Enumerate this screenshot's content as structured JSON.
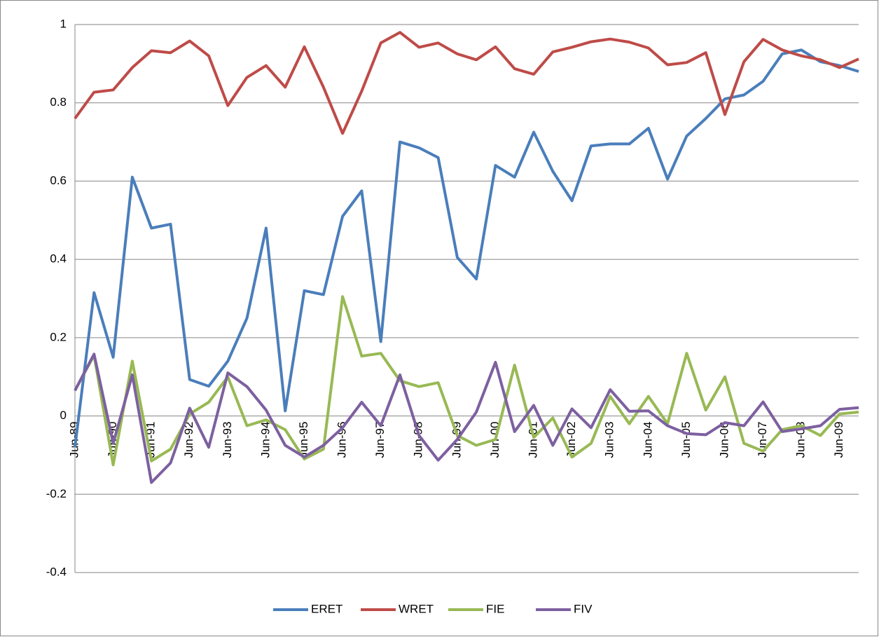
{
  "chart_data": {
    "type": "line",
    "categories": [
      "Jun-89",
      null,
      "Jun-90",
      null,
      "Jun-91",
      null,
      "Jun-92",
      null,
      "Jun-93",
      null,
      "Jun-94",
      null,
      "Jun-95",
      null,
      "Jun-96",
      null,
      "Jun-97",
      null,
      "Jun-98",
      null,
      "Jun-99",
      null,
      "Jun-00",
      null,
      "Jun-01",
      null,
      "Jun-02",
      null,
      "Jun-03",
      null,
      "Jun-04",
      null,
      "Jun-05",
      null,
      "Jun-06",
      null,
      "Jun-07",
      null,
      "Jun-08",
      null,
      "Jun-09",
      null
    ],
    "series": [
      {
        "name": "ERET",
        "color": "#4a7ebb",
        "values": [
          -0.08,
          0.315,
          0.15,
          0.61,
          0.48,
          0.49,
          0.093,
          0.076,
          0.14,
          0.25,
          0.48,
          0.013,
          0.32,
          0.31,
          0.51,
          0.575,
          0.19,
          0.7,
          0.685,
          0.66,
          0.405,
          0.35,
          0.64,
          0.61,
          0.725,
          0.625,
          0.55,
          0.69,
          0.695,
          0.695,
          0.735,
          0.605,
          0.715,
          0.76,
          0.81,
          0.82,
          0.855,
          0.925,
          0.935,
          0.905,
          0.895,
          0.88
        ]
      },
      {
        "name": "WRET",
        "color": "#be4b48",
        "values": [
          0.76,
          0.827,
          0.833,
          0.89,
          0.933,
          0.928,
          0.958,
          0.92,
          0.793,
          0.865,
          0.895,
          0.84,
          0.943,
          0.84,
          0.722,
          0.83,
          0.953,
          0.98,
          0.942,
          0.953,
          0.925,
          0.91,
          0.943,
          0.887,
          0.873,
          0.93,
          0.942,
          0.956,
          0.963,
          0.955,
          0.94,
          0.897,
          0.903,
          0.928,
          0.77,
          0.905,
          0.962,
          0.935,
          0.92,
          0.91,
          0.89,
          0.912
        ]
      },
      {
        "name": "FIE",
        "color": "#98b954",
        "values": [
          0.065,
          0.155,
          -0.125,
          0.14,
          -0.115,
          -0.085,
          0.005,
          0.035,
          0.1,
          -0.025,
          -0.01,
          -0.035,
          -0.11,
          -0.085,
          0.305,
          0.153,
          0.16,
          0.09,
          0.075,
          0.085,
          -0.05,
          -0.075,
          -0.06,
          0.13,
          -0.055,
          -0.005,
          -0.105,
          -0.07,
          0.05,
          -0.02,
          0.05,
          -0.02,
          0.16,
          0.015,
          0.1,
          -0.07,
          -0.09,
          -0.035,
          -0.025,
          -0.05,
          0.005,
          0.01
        ]
      },
      {
        "name": "FIV",
        "color": "#7d60a0",
        "values": [
          0.065,
          0.158,
          -0.07,
          0.105,
          -0.17,
          -0.12,
          0.02,
          -0.08,
          0.11,
          0.075,
          0.015,
          -0.075,
          -0.105,
          -0.075,
          -0.03,
          0.035,
          -0.025,
          0.105,
          -0.05,
          -0.113,
          -0.06,
          0.01,
          0.137,
          -0.04,
          0.027,
          -0.075,
          0.018,
          -0.03,
          0.067,
          0.012,
          0.013,
          -0.025,
          -0.045,
          -0.048,
          -0.017,
          -0.025,
          0.036,
          -0.04,
          -0.033,
          -0.025,
          0.017,
          0.021
        ]
      }
    ],
    "ylim": [
      -0.4,
      1
    ],
    "yticks": [
      -0.4,
      -0.2,
      0,
      0.2,
      0.4,
      0.6,
      0.8,
      1
    ],
    "grid": true,
    "legend": "bottom"
  }
}
